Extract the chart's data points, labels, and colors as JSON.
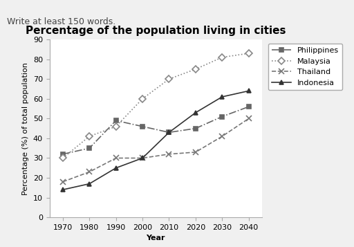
{
  "header_text": "Write at least 150 words.",
  "title": "Percentage of the population living in cities",
  "xlabel": "Year",
  "ylabel": "Percentage (%) of total population",
  "years": [
    1970,
    1980,
    1990,
    2000,
    2010,
    2020,
    2030,
    2040
  ],
  "series": {
    "Philippines": [
      32,
      35,
      49,
      46,
      43,
      45,
      51,
      56
    ],
    "Malaysia": [
      30,
      41,
      46,
      60,
      70,
      75,
      81,
      83
    ],
    "Thailand": [
      18,
      23,
      30,
      30,
      32,
      33,
      41,
      50
    ],
    "Indonesia": [
      14,
      17,
      25,
      30,
      43,
      53,
      61,
      64
    ]
  },
  "styles": {
    "Philippines": {
      "color": "#666666",
      "linestyle": "-.",
      "marker": "s",
      "markersize": 5,
      "markerfacecolor": "#666666"
    },
    "Malaysia": {
      "color": "#888888",
      "linestyle": ":",
      "marker": "D",
      "markersize": 5,
      "markerfacecolor": "white"
    },
    "Thailand": {
      "color": "#777777",
      "linestyle": "--",
      "marker": "x",
      "markersize": 6,
      "markerfacecolor": "#777777"
    },
    "Indonesia": {
      "color": "#333333",
      "linestyle": "-",
      "marker": "^",
      "markersize": 5,
      "markerfacecolor": "#333333"
    }
  },
  "ylim": [
    0,
    90
  ],
  "yticks": [
    0,
    10,
    20,
    30,
    40,
    50,
    60,
    70,
    80,
    90
  ],
  "background_color": "#f0f0f0",
  "plot_bg_color": "#ffffff",
  "title_fontsize": 11,
  "axis_label_fontsize": 8,
  "tick_fontsize": 8,
  "legend_fontsize": 8,
  "header_fontsize": 9
}
